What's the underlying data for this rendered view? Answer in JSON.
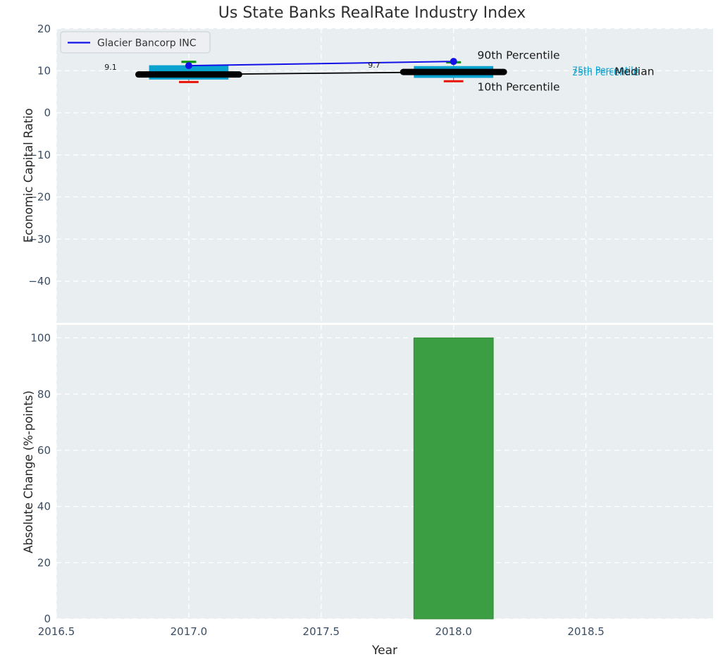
{
  "title": "Us State Banks RealRate Industry Index",
  "legend": {
    "label": "Glacier Bancorp INC"
  },
  "colors": {
    "figure_bg": "#ffffff",
    "plot_bg": "#e9eef1",
    "grid": "#ffffff",
    "tick": "#3b4d63",
    "axis_label": "#262626",
    "title": "#2e2e2e",
    "box": "#0aa2cf",
    "median": "#000000",
    "company": "#1212e8",
    "p90_cap": "#0c9a10",
    "p10_cap": "#e81309",
    "bar": "#3c9e42",
    "bar_edge": "#2f8a36",
    "whisker": "#3a3a3a",
    "legend_bg": "#edeff2",
    "legend_border": "#c9cdd2",
    "legend_text": "#333333"
  },
  "chart_data": [
    {
      "type": "box-line-timeseries",
      "title": "Us State Banks RealRate Industry Index",
      "ylabel": "Economic Capital Ratio",
      "xlabel": "",
      "grid": true,
      "legend_position": "upper left",
      "xlim": [
        2016.5,
        2018.98
      ],
      "ylim": [
        -49.9,
        20.1
      ],
      "xticks": [
        2016.5,
        2017.0,
        2017.5,
        2018.0,
        2018.5
      ],
      "xtick_labels": [
        "2016.5",
        "2017.0",
        "2017.5",
        "2018.0",
        "2018.5"
      ],
      "yticks": [
        20,
        10,
        0,
        -10,
        -20,
        -30,
        -40
      ],
      "ytick_labels": [
        "20",
        "10",
        "0",
        "−10",
        "−20",
        "−30",
        "−40"
      ],
      "years": [
        2017,
        2018
      ],
      "company": {
        "name": "Glacier Bancorp INC",
        "values": [
          11.2,
          12.2
        ]
      },
      "median": {
        "name": "Median",
        "values": [
          9.1,
          9.7
        ]
      },
      "percentiles": {
        "p90": [
          12.1,
          12.0
        ],
        "p75": [
          11.3,
          11.1
        ],
        "p25": [
          7.9,
          8.3
        ],
        "p10": [
          7.3,
          7.5
        ]
      },
      "box_width": 0.3,
      "median_segment_halfwidth": 0.19,
      "cap_halfwidth": 0.028,
      "annotations": [
        {
          "text": "9.1",
          "x": 2016.705,
          "y": 10.9,
          "size": 11,
          "color": "#1a1a1a",
          "anchor": "middle"
        },
        {
          "text": "9.7",
          "x": 2017.7,
          "y": 11.4,
          "size": 11,
          "color": "#1a1a1a",
          "anchor": "middle"
        },
        {
          "text": "90th Percentile",
          "x": 2018.09,
          "y": 13.7,
          "size": 15.5,
          "color": "#1a1a1a",
          "anchor": "start"
        },
        {
          "text": "10th Percentile",
          "x": 2018.09,
          "y": 6.2,
          "size": 15.5,
          "color": "#1a1a1a",
          "anchor": "start"
        },
        {
          "text": "75th Percentile",
          "x": 2018.448,
          "y": 10.2,
          "size": 12.5,
          "color": "#0aa2cf",
          "anchor": "start"
        },
        {
          "text": "25th Percentile",
          "x": 2018.448,
          "y": 9.6,
          "size": 12.5,
          "color": "#0aa2cf",
          "anchor": "start"
        },
        {
          "text": "Median",
          "x": 2018.608,
          "y": 9.9,
          "size": 15.5,
          "color": "#1a1a1a",
          "anchor": "start"
        }
      ]
    },
    {
      "type": "bar",
      "ylabel": "Absolute Change (%-points)",
      "xlabel": "Year",
      "grid": true,
      "xlim": [
        2016.5,
        2018.98
      ],
      "ylim": [
        0,
        104.6
      ],
      "yticks": [
        0,
        20,
        40,
        60,
        80,
        100
      ],
      "ytick_labels": [
        "0",
        "20",
        "40",
        "60",
        "80",
        "100"
      ],
      "x": [
        2018
      ],
      "values": [
        100
      ],
      "bar_width": 0.3
    }
  ]
}
